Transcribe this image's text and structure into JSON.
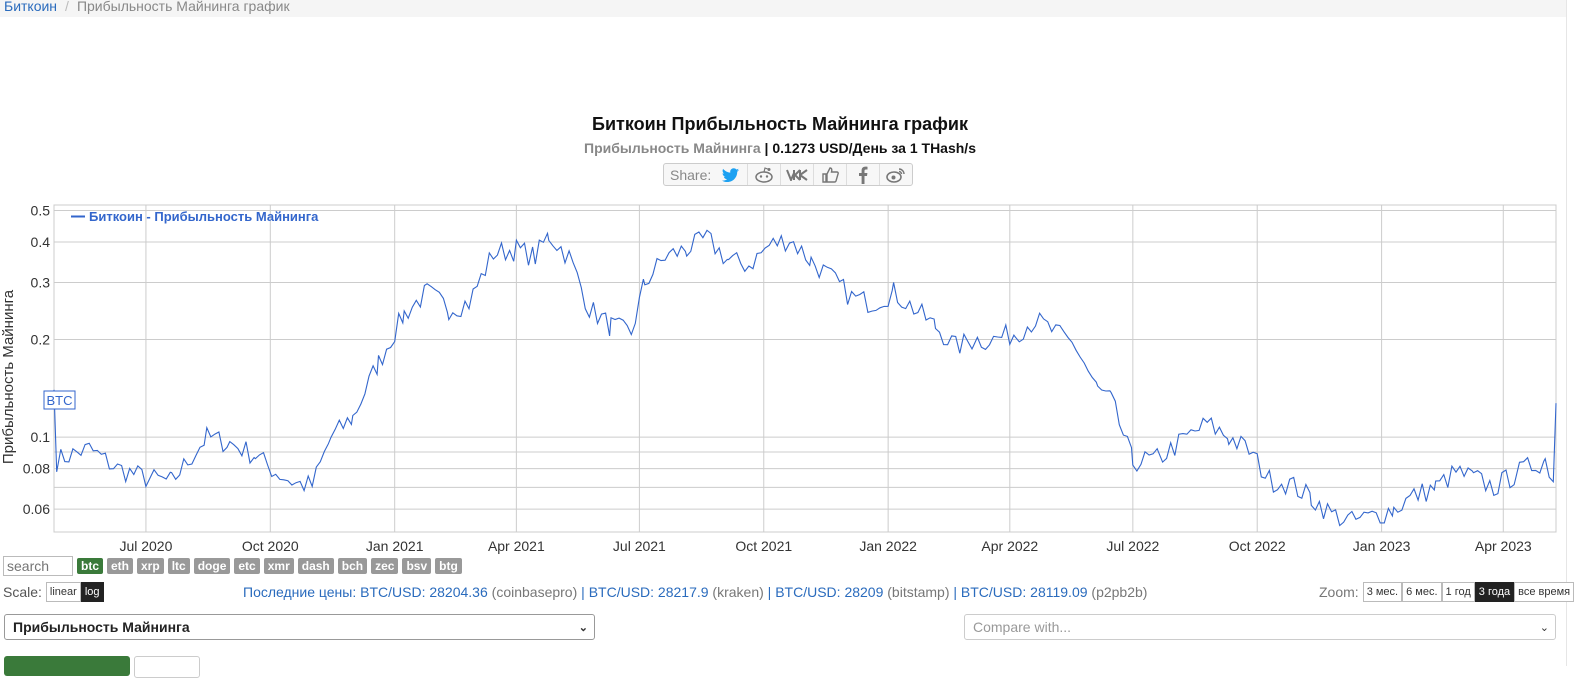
{
  "breadcrumb": {
    "root": "Биткоин",
    "separator": "/",
    "current": "Прибыльность Майнинга график"
  },
  "header": {
    "title": "Биткоин Прибыльность Майнинга график",
    "subtitle_metric": "Прибыльность Майнинга",
    "subtitle_value": "| 0.1273 USD/День за 1 THash/s"
  },
  "share": {
    "label": "Share:",
    "icons": [
      "twitter-icon",
      "reddit-icon",
      "vk-icon",
      "like-icon",
      "facebook-icon",
      "weibo-icon"
    ]
  },
  "chart_data": {
    "type": "line",
    "ylabel": "Прибыльность Майнинга",
    "legend": "Биткоин - Прибыльность Майнинга",
    "series_tag": "BTC",
    "y_scale": "log",
    "ylim": [
      0.051,
      0.52
    ],
    "y_ticks": [
      "0.5",
      "0.4",
      "0.3",
      "0.2",
      "0.1",
      "0.08",
      "0.06"
    ],
    "x_ticks": [
      "Jul 2020",
      "Oct 2020",
      "Jan 2021",
      "Apr 2021",
      "Jul 2021",
      "Oct 2021",
      "Jan 2022",
      "Apr 2022",
      "Jul 2022",
      "Oct 2022",
      "Jan 2023",
      "Apr 2023"
    ],
    "x_range": [
      "2020-04-24",
      "2023-05-10"
    ],
    "grid": true,
    "legend_position": "top-left",
    "color": "#3366cc",
    "series": [
      {
        "name": "Биткоин - Прибыльность Майнинга",
        "x": [
          "2020-04-24",
          "2020-04-26",
          "2020-05-05",
          "2020-05-20",
          "2020-06-10",
          "2020-07-01",
          "2020-07-20",
          "2020-08-15",
          "2020-09-01",
          "2020-09-20",
          "2020-10-05",
          "2020-10-20",
          "2020-11-01",
          "2020-11-15",
          "2020-12-01",
          "2020-12-20",
          "2021-01-08",
          "2021-01-25",
          "2021-02-10",
          "2021-02-25",
          "2021-03-15",
          "2021-04-01",
          "2021-04-15",
          "2021-04-25",
          "2021-05-10",
          "2021-05-25",
          "2021-06-10",
          "2021-06-25",
          "2021-07-05",
          "2021-07-20",
          "2021-08-05",
          "2021-08-20",
          "2021-09-05",
          "2021-09-20",
          "2021-10-05",
          "2021-10-20",
          "2021-11-05",
          "2021-11-20",
          "2021-12-05",
          "2021-12-20",
          "2022-01-05",
          "2022-01-20",
          "2022-02-05",
          "2022-02-20",
          "2022-03-05",
          "2022-03-20",
          "2022-04-05",
          "2022-04-20",
          "2022-05-05",
          "2022-05-20",
          "2022-06-05",
          "2022-06-15",
          "2022-07-01",
          "2022-07-20",
          "2022-08-10",
          "2022-08-25",
          "2022-09-10",
          "2022-09-25",
          "2022-10-10",
          "2022-10-25",
          "2022-11-10",
          "2022-11-25",
          "2022-12-10",
          "2022-12-25",
          "2023-01-10",
          "2023-01-25",
          "2023-02-10",
          "2023-02-25",
          "2023-03-10",
          "2023-03-25",
          "2023-04-10",
          "2023-04-25",
          "2023-05-02",
          "2023-05-08",
          "2023-05-10"
        ],
        "values": [
          0.14,
          0.085,
          0.088,
          0.092,
          0.08,
          0.075,
          0.073,
          0.1,
          0.096,
          0.088,
          0.078,
          0.072,
          0.071,
          0.1,
          0.115,
          0.17,
          0.24,
          0.28,
          0.25,
          0.26,
          0.37,
          0.38,
          0.36,
          0.42,
          0.36,
          0.25,
          0.22,
          0.21,
          0.3,
          0.36,
          0.38,
          0.41,
          0.35,
          0.34,
          0.39,
          0.41,
          0.35,
          0.31,
          0.27,
          0.26,
          0.28,
          0.25,
          0.22,
          0.19,
          0.2,
          0.2,
          0.21,
          0.23,
          0.21,
          0.19,
          0.14,
          0.13,
          0.084,
          0.086,
          0.1,
          0.11,
          0.1,
          0.091,
          0.074,
          0.072,
          0.065,
          0.058,
          0.055,
          0.057,
          0.06,
          0.066,
          0.07,
          0.078,
          0.075,
          0.07,
          0.077,
          0.083,
          0.085,
          0.075,
          0.1273
        ]
      }
    ]
  },
  "coins": {
    "search_placeholder": "search",
    "items": [
      "btc",
      "eth",
      "xrp",
      "ltc",
      "doge",
      "etc",
      "xmr",
      "dash",
      "bch",
      "zec",
      "bsv",
      "btg"
    ],
    "active": "btc"
  },
  "scale": {
    "label": "Scale:",
    "options": [
      "linear",
      "log"
    ],
    "active": "log"
  },
  "prices": {
    "label": "Последние цены:",
    "items": [
      {
        "pair": "BTC/USD:",
        "price": "28204.36",
        "exchange": "(coinbasepro)"
      },
      {
        "pair": "BTC/USD:",
        "price": "28217.9",
        "exchange": "(kraken)"
      },
      {
        "pair": "BTC/USD:",
        "price": "28209",
        "exchange": "(bitstamp)"
      },
      {
        "pair": "BTC/USD:",
        "price": "28119.09",
        "exchange": "(p2pb2b)"
      }
    ]
  },
  "zoom": {
    "label": "Zoom:",
    "options": [
      "3 мес.",
      "6 мес.",
      "1 год",
      "3 года",
      "все время"
    ],
    "active": "3 года"
  },
  "selects": {
    "metric": "Прибыльность Майнинга",
    "compare_placeholder": "Compare with..."
  },
  "colors": {
    "line": "#3366cc",
    "link": "#2a6bbd",
    "coin_active": "#3a7a3a",
    "coin": "#999999"
  }
}
